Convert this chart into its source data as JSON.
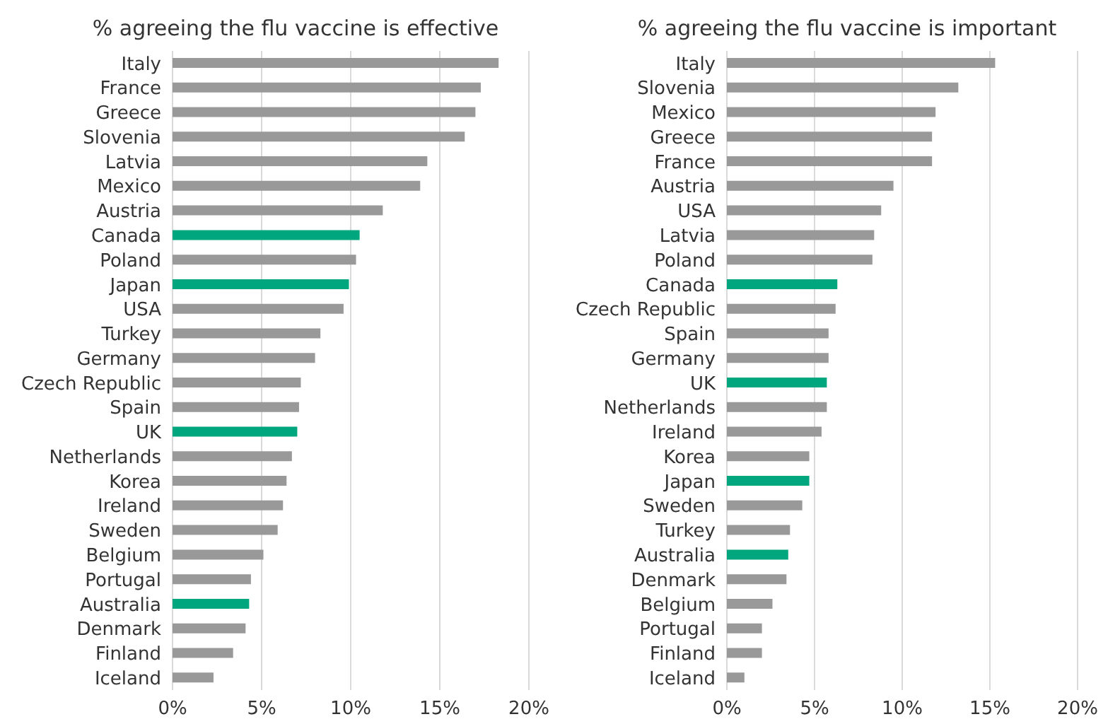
{
  "chart_data": [
    {
      "type": "bar",
      "orientation": "horizontal",
      "title": "% agreeing the flu vaccine is effective",
      "categories": [
        "Italy",
        "France",
        "Greece",
        "Slovenia",
        "Latvia",
        "Mexico",
        "Austria",
        "Canada",
        "Poland",
        "Japan",
        "USA",
        "Turkey",
        "Germany",
        "Czech Republic",
        "Spain",
        "UK",
        "Netherlands",
        "Korea",
        "Ireland",
        "Sweden",
        "Belgium",
        "Portugal",
        "Australia",
        "Denmark",
        "Finland",
        "Iceland"
      ],
      "values": [
        18.3,
        17.3,
        17.0,
        16.4,
        14.3,
        13.9,
        11.8,
        10.5,
        10.3,
        9.9,
        9.6,
        8.3,
        8.0,
        7.2,
        7.1,
        7.0,
        6.7,
        6.4,
        6.2,
        5.9,
        5.1,
        4.4,
        4.3,
        4.1,
        3.4,
        2.3
      ],
      "colors": [
        "#999999",
        "#999999",
        "#999999",
        "#999999",
        "#999999",
        "#999999",
        "#999999",
        "#00a67e",
        "#999999",
        "#00a67e",
        "#999999",
        "#999999",
        "#999999",
        "#999999",
        "#999999",
        "#00a67e",
        "#999999",
        "#999999",
        "#999999",
        "#999999",
        "#999999",
        "#999999",
        "#00a67e",
        "#999999",
        "#999999",
        "#999999"
      ],
      "xlim": [
        0,
        20
      ],
      "xticks": [
        {
          "value": 0,
          "label": "0%"
        },
        {
          "value": 5,
          "label": "5%"
        },
        {
          "value": 10,
          "label": "10%"
        },
        {
          "value": 15,
          "label": "15%"
        },
        {
          "value": 20,
          "label": "20%"
        }
      ],
      "grid": "x",
      "legend": false
    },
    {
      "type": "bar",
      "orientation": "horizontal",
      "title": "% agreeing the flu vaccine is important",
      "categories": [
        "Italy",
        "Slovenia",
        "Mexico",
        "Greece",
        "France",
        "Austria",
        "USA",
        "Latvia",
        "Poland",
        "Canada",
        "Czech Republic",
        "Spain",
        "Germany",
        "UK",
        "Netherlands",
        "Ireland",
        "Korea",
        "Japan",
        "Sweden",
        "Turkey",
        "Australia",
        "Denmark",
        "Belgium",
        "Portugal",
        "Finland",
        "Iceland"
      ],
      "values": [
        15.3,
        13.2,
        11.9,
        11.7,
        11.7,
        9.5,
        8.8,
        8.4,
        8.3,
        6.3,
        6.2,
        5.8,
        5.8,
        5.7,
        5.7,
        5.4,
        4.7,
        4.7,
        4.3,
        3.6,
        3.5,
        3.4,
        2.6,
        2.0,
        2.0,
        1.0
      ],
      "colors": [
        "#999999",
        "#999999",
        "#999999",
        "#999999",
        "#999999",
        "#999999",
        "#999999",
        "#999999",
        "#999999",
        "#00a67e",
        "#999999",
        "#999999",
        "#999999",
        "#00a67e",
        "#999999",
        "#999999",
        "#999999",
        "#00a67e",
        "#999999",
        "#999999",
        "#00a67e",
        "#999999",
        "#999999",
        "#999999",
        "#999999",
        "#999999"
      ],
      "xlim": [
        0,
        20
      ],
      "xticks": [
        {
          "value": 0,
          "label": "0%"
        },
        {
          "value": 5,
          "label": "5%"
        },
        {
          "value": 10,
          "label": "10%"
        },
        {
          "value": 15,
          "label": "15%"
        },
        {
          "value": 20,
          "label": "20%"
        }
      ],
      "grid": "x",
      "legend": false
    }
  ]
}
